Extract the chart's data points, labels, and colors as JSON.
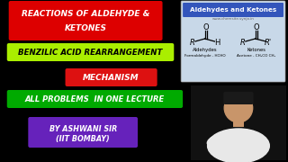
{
  "bg_color": "#000000",
  "title1": "REACTIONS OF ALDEHYDE &",
  "title2": "KETONES",
  "title_box_color": "#dd0000",
  "title_text_color": "#ffffff",
  "line2": "BENZILIC ACID REARRANGEMENT",
  "line2_box_color": "#aaee00",
  "line2_text_color": "#000000",
  "line3": "MECHANISM",
  "line3_box_color": "#dd1111",
  "line3_text_color": "#ffffff",
  "line4": "ALL PROBLEMS  IN ONE LECTURE",
  "line4_box_color": "#00aa00",
  "line4_text_color": "#ffffff",
  "line5a": "BY ASHWANI SIR",
  "line5b": "(IIT BOMBAY)",
  "line5_box_color": "#6622bb",
  "line5_text_color": "#ffffff",
  "chem_box_color": "#c8d8e8",
  "chem_title": "Aldehydes and Ketones",
  "chem_title_bg": "#3355bb",
  "chem_title_color": "#ffffff",
  "person_skin": "#c8956a",
  "person_shirt": "#e8e8e8"
}
